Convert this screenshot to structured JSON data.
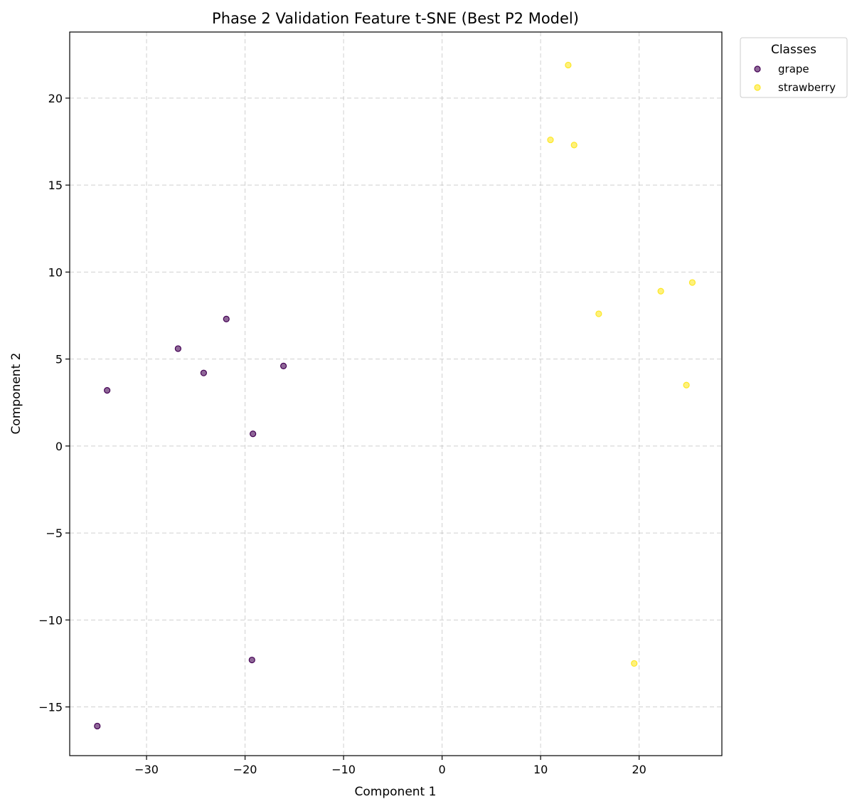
{
  "chart_data": {
    "type": "scatter",
    "title": "Phase 2 Validation Feature t-SNE (Best P2 Model)",
    "xlabel": "Component 1",
    "ylabel": "Component 2",
    "xlim": [
      -37.8,
      28.4
    ],
    "ylim": [
      -17.8,
      23.8
    ],
    "xticks": [
      -30,
      -20,
      -10,
      0,
      10,
      20
    ],
    "yticks": [
      -15,
      -10,
      -5,
      0,
      5,
      10,
      15,
      20
    ],
    "grid": true,
    "legend": {
      "title": "Classes",
      "placement": "outside-top-right"
    },
    "series": [
      {
        "name": "grape",
        "color": "#440154",
        "points": [
          {
            "x": -34.0,
            "y": 3.2
          },
          {
            "x": -26.8,
            "y": 5.6
          },
          {
            "x": -24.2,
            "y": 4.2
          },
          {
            "x": -21.9,
            "y": 7.3
          },
          {
            "x": -16.1,
            "y": 4.6
          },
          {
            "x": -19.2,
            "y": 0.7
          },
          {
            "x": -19.3,
            "y": -12.3
          },
          {
            "x": -35.0,
            "y": -16.1
          }
        ]
      },
      {
        "name": "strawberry",
        "color": "#fde725",
        "points": [
          {
            "x": 12.8,
            "y": 21.9
          },
          {
            "x": 11.0,
            "y": 17.6
          },
          {
            "x": 13.4,
            "y": 17.3
          },
          {
            "x": 15.9,
            "y": 7.6
          },
          {
            "x": 22.2,
            "y": 8.9
          },
          {
            "x": 25.4,
            "y": 9.4
          },
          {
            "x": 24.8,
            "y": 3.5
          },
          {
            "x": 19.5,
            "y": -12.5
          }
        ]
      }
    ]
  }
}
